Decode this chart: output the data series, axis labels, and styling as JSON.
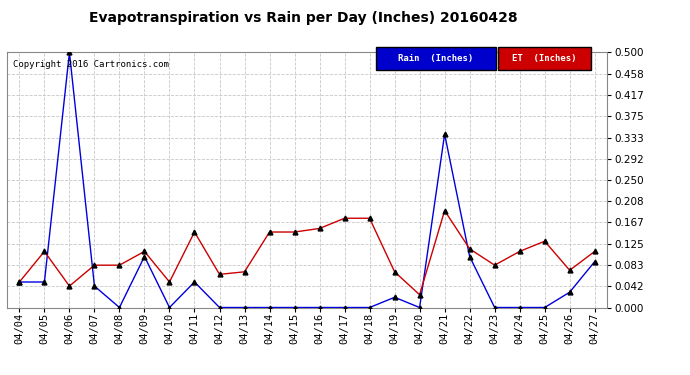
{
  "title": "Evapotranspiration vs Rain per Day (Inches) 20160428",
  "copyright": "Copyright 2016 Cartronics.com",
  "background_color": "#ffffff",
  "grid_color": "#c8c8c8",
  "dates": [
    "04/04",
    "04/05",
    "04/06",
    "04/07",
    "04/08",
    "04/09",
    "04/10",
    "04/11",
    "04/12",
    "04/13",
    "04/14",
    "04/15",
    "04/16",
    "04/17",
    "04/18",
    "04/19",
    "04/20",
    "04/21",
    "04/22",
    "04/23",
    "04/24",
    "04/25",
    "04/26",
    "04/27"
  ],
  "rain_inches": [
    0.05,
    0.05,
    0.5,
    0.042,
    0.0,
    0.1,
    0.0,
    0.05,
    0.0,
    0.0,
    0.0,
    0.0,
    0.0,
    0.0,
    0.0,
    0.02,
    0.0,
    0.34,
    0.1,
    0.0,
    0.0,
    0.0,
    0.03,
    0.09
  ],
  "et_inches": [
    0.05,
    0.11,
    0.042,
    0.083,
    0.083,
    0.11,
    0.05,
    0.148,
    0.065,
    0.07,
    0.148,
    0.148,
    0.155,
    0.175,
    0.175,
    0.07,
    0.025,
    0.19,
    0.115,
    0.083,
    0.11,
    0.13,
    0.073,
    0.11
  ],
  "rain_color": "#0000dd",
  "et_color": "#cc0000",
  "ylim": [
    0.0,
    0.5
  ],
  "yticks": [
    0.0,
    0.042,
    0.083,
    0.125,
    0.167,
    0.208,
    0.25,
    0.292,
    0.333,
    0.375,
    0.417,
    0.458,
    0.5
  ],
  "legend_rain_bg": "#0000cc",
  "legend_et_bg": "#cc0000",
  "legend_rain_text": "Rain  (Inches)",
  "legend_et_text": "ET  (Inches)",
  "marker": "^",
  "marker_color": "#000000",
  "marker_size": 3.5,
  "line_width": 1.0,
  "title_fontsize": 10,
  "tick_fontsize": 7.5,
  "copyright_fontsize": 6.5
}
